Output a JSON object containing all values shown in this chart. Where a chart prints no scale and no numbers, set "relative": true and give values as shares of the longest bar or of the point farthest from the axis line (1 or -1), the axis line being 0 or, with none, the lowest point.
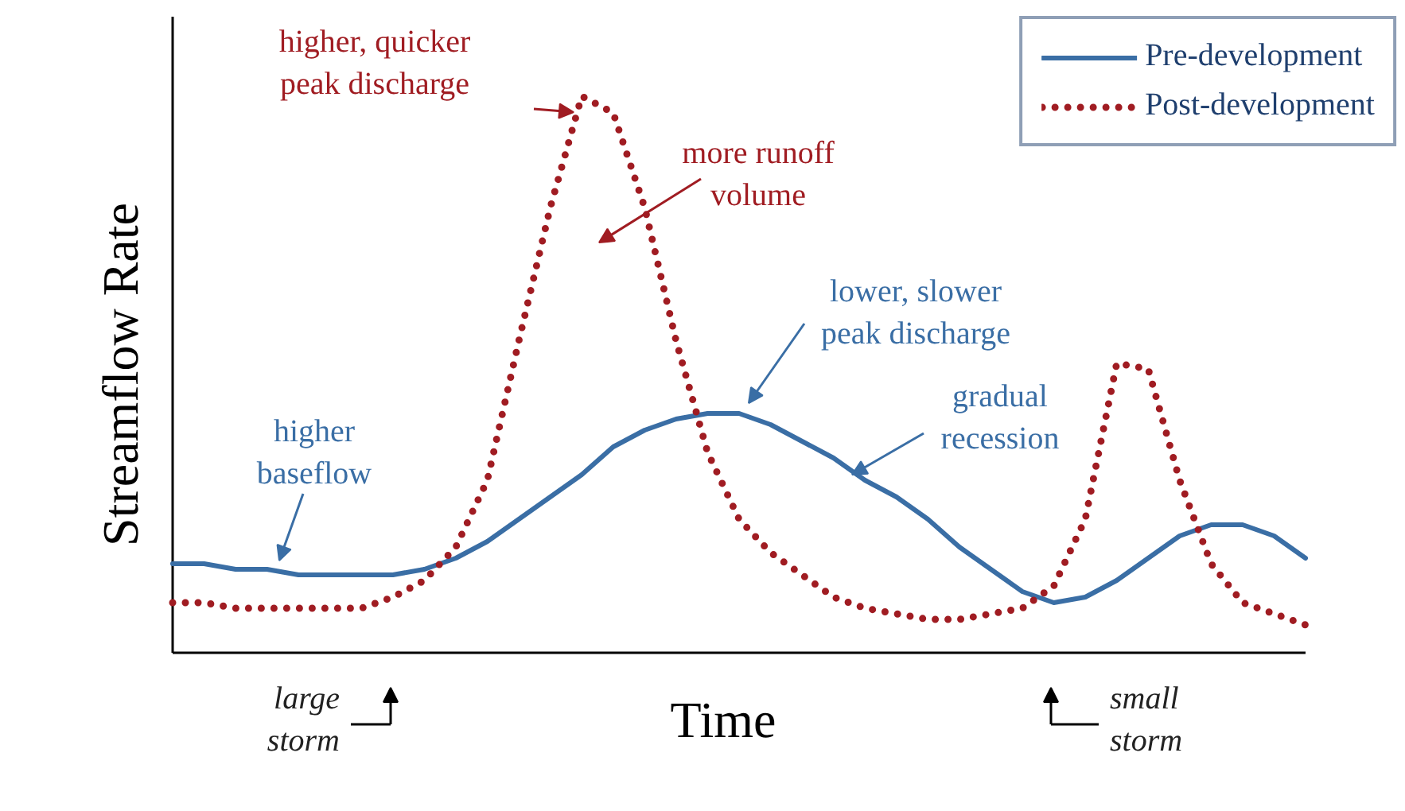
{
  "chart_data": {
    "type": "line",
    "relative": true,
    "xlabel": "Time",
    "ylabel": "Streamflow Rate",
    "categories": [
      null,
      null,
      null,
      null,
      null,
      null,
      null,
      null,
      null,
      null,
      null,
      null,
      null,
      null,
      null,
      null,
      null,
      null,
      null,
      null,
      null,
      null,
      null,
      null,
      null,
      null,
      null,
      null,
      null,
      null,
      null,
      null,
      null,
      null,
      null,
      null,
      null
    ],
    "series": [
      {
        "name": "Pre-development",
        "color": "#3a6ea5",
        "line_style": "solid",
        "values": [
          0.16,
          0.16,
          0.15,
          0.15,
          0.14,
          0.14,
          0.14,
          0.14,
          0.15,
          0.17,
          0.2,
          0.24,
          0.28,
          0.32,
          0.37,
          0.4,
          0.42,
          0.43,
          0.43,
          0.41,
          0.38,
          0.35,
          0.31,
          0.28,
          0.24,
          0.19,
          0.15,
          0.11,
          0.09,
          0.1,
          0.13,
          0.17,
          0.21,
          0.23,
          0.23,
          0.21,
          0.17
        ]
      },
      {
        "name": "Post-development",
        "color": "#a01c22",
        "line_style": "dotted",
        "values": [
          0.09,
          0.09,
          0.08,
          0.08,
          0.08,
          0.08,
          0.08,
          0.1,
          0.13,
          0.19,
          0.31,
          0.56,
          0.8,
          1.0,
          0.97,
          0.8,
          0.56,
          0.36,
          0.24,
          0.18,
          0.14,
          0.1,
          0.08,
          0.07,
          0.06,
          0.06,
          0.07,
          0.08,
          0.12,
          0.24,
          0.52,
          0.51,
          0.31,
          0.16,
          0.09,
          0.07,
          0.05
        ]
      }
    ],
    "annotations": [
      "higher, quicker\npeak discharge",
      "more runoff\nvolume",
      "lower, slower\npeak discharge",
      "gradual\nrecession",
      "higher\nbaseflow",
      "large\nstorm",
      "small\nstorm"
    ],
    "legend": "top right",
    "grid": false
  }
}
